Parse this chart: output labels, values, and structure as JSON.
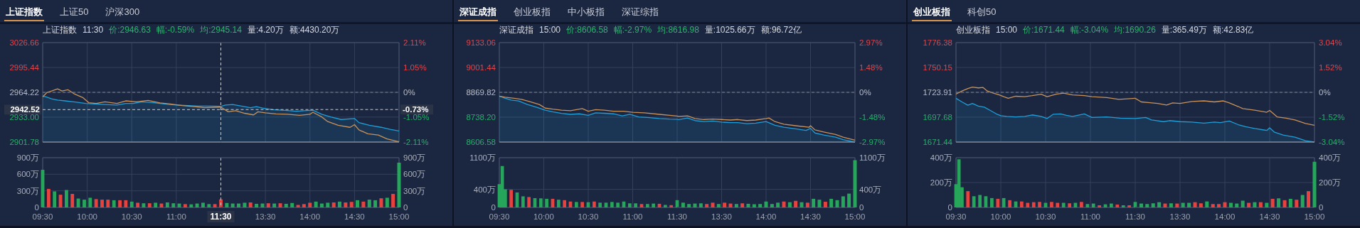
{
  "chart_data": [
    {
      "type": "line",
      "title": "上证指数  11:30  价:2946.63  幅:-0.59%  均:2945.14  量:4.20万  额:4430.20万",
      "annotations": [
        "上证指数",
        "上证50",
        "沪深300"
      ],
      "tick_labels": "y",
      "grid": true,
      "xlim": [
        9.5,
        11.5
      ],
      "xticks": [
        9.5,
        10,
        10.5,
        11,
        11.5
      ],
      "ylim": [
        2901.78,
        3026.66
      ],
      "yticks": [
        2901.78,
        {
          "value": 2933,
          "label": "2933.00"
        },
        2964.22,
        2995.44,
        3026.66
      ],
      "ref_lines": [
        {
          "axis": "y",
          "value": 2964.22,
          "color": "#7d8491",
          "line_style": "dashed"
        },
        {
          "axis": "x",
          "value": 11.5,
          "line_style": "dashed"
        },
        {
          "axis": "y",
          "value": 2942.52,
          "label": "2942.52",
          "line_style": "dashed"
        }
      ],
      "series": [
        {
          "type": "area",
          "color": "#1e9fd8",
          "x": [
            9.5,
            9.533,
            9.6,
            9.667,
            9.75,
            9.85,
            9.983,
            10.083,
            10.2,
            10.333,
            10.433,
            10.517,
            10.617,
            10.75,
            10.867,
            11.0,
            11.133,
            11.25,
            11.383,
            11.5
          ],
          "values": [
            2959.3,
            2958.7,
            2956.1,
            2954.5,
            2953.5,
            2952.2,
            2950.2,
            2949.6,
            2948.9,
            2948.3,
            2950.2,
            2950.2,
            2952.2,
            2951.2,
            2949.6,
            2948.3,
            2947.6,
            2947.0,
            2947.0,
            2946.6
          ]
        },
        {
          "color": "#c8925a",
          "x": [
            9.5,
            9.55,
            9.6,
            9.667,
            9.717,
            9.783,
            9.85,
            9.95,
            10.017,
            10.1,
            10.2,
            10.333,
            10.433,
            10.55,
            10.683,
            10.817,
            10.933,
            11.067,
            11.2,
            11.317,
            11.5
          ],
          "values": [
            2958.7,
            2964.2,
            2965.9,
            2968.5,
            2965.9,
            2967.5,
            2962.6,
            2957.7,
            2951.2,
            2950.2,
            2952.2,
            2950.2,
            2953.5,
            2952.2,
            2954.1,
            2950.9,
            2949.6,
            2947.6,
            2946.3,
            2945.0,
            2945.7
          ]
        }
      ]
    },
    {
      "type": "line",
      "tick_labels": "y",
      "grid": true,
      "xlim": [
        13,
        15
      ],
      "xticks": [
        13.5,
        14,
        14.5,
        15
      ],
      "ylim": [
        2901.78,
        3026.66
      ],
      "y2lim": [
        -2.11,
        2.11
      ],
      "y2ticks": [
        {
          "value": -2.11,
          "label": "-2.11%"
        },
        {
          "value": -1.05,
          "label": "-1.05%"
        },
        {
          "value": 0,
          "label": "0%"
        },
        {
          "value": 1.05,
          "label": "1.05%"
        },
        {
          "value": 2.11,
          "label": "2.11%"
        }
      ],
      "ref_lines": [
        {
          "axis": "y2",
          "value": 0,
          "color": "#7d8491",
          "line_style": "dashed"
        },
        {
          "axis": "y2",
          "value": -0.73,
          "label": "-0.73%",
          "line_style": "dashed"
        }
      ],
      "series": [
        {
          "type": "area",
          "color": "#1e9fd8",
          "x": [
            13.0,
            13.05,
            13.133,
            13.233,
            13.333,
            13.4,
            13.467,
            13.583,
            13.717,
            13.85,
            13.933,
            14.033,
            14.133,
            14.233,
            14.35,
            14.5,
            14.55,
            14.667,
            14.8,
            14.9,
            15.0
          ],
          "values": [
            2946.6,
            2948.3,
            2948.9,
            2947.0,
            2945.0,
            2946.3,
            2944.4,
            2942.4,
            2941.5,
            2940.5,
            2941.1,
            2941.8,
            2936.6,
            2933.3,
            2930.1,
            2931.4,
            2926.2,
            2922.9,
            2920.3,
            2917.7,
            2915.8
          ]
        },
        {
          "color": "#c8925a",
          "x": [
            13.0,
            13.083,
            13.167,
            13.267,
            13.367,
            13.417,
            13.5,
            13.617,
            13.75,
            13.883,
            14.0,
            14.033,
            14.133,
            14.2,
            14.317,
            14.45,
            14.5,
            14.55,
            14.65,
            14.767,
            14.867,
            15.0
          ],
          "values": [
            2945.7,
            2939.8,
            2941.1,
            2937.9,
            2935.9,
            2939.8,
            2938.5,
            2937.2,
            2936.6,
            2935.3,
            2936.6,
            2939.2,
            2933.3,
            2927.5,
            2922.9,
            2920.3,
            2923.6,
            2917.1,
            2912.2,
            2910.6,
            2905.7,
            2902.1
          ]
        }
      ]
    },
    {
      "type": "bar",
      "grid": true,
      "xlim": [
        9.5,
        11.5
      ],
      "xticks": [
        {
          "value": 9.5,
          "label": "09:30"
        },
        {
          "value": 10,
          "label": "10:00"
        },
        {
          "value": 10.5,
          "label": "10:30"
        },
        {
          "value": 11,
          "label": "11:00"
        },
        {
          "value": 11.5,
          "label": null
        }
      ],
      "ylim": [
        0,
        900
      ],
      "yticks": [
        0,
        {
          "value": 300,
          "label": "300万"
        },
        {
          "value": 600,
          "label": "600万"
        },
        {
          "value": 900,
          "label": "900万"
        }
      ],
      "ref_lines": [
        {
          "axis": "x",
          "value": 11.5,
          "label": "11:30",
          "line_style": "dashed"
        }
      ],
      "x": [
        9.5,
        9.567,
        9.633,
        9.7,
        9.767,
        9.833,
        9.9,
        9.967,
        10.033,
        10.1,
        10.167,
        10.233,
        10.3,
        10.367,
        10.433,
        10.5,
        10.567,
        10.633,
        10.7,
        10.767,
        10.833,
        10.9,
        10.967,
        11.033,
        11.1,
        11.167,
        11.233,
        11.3,
        11.367,
        11.433,
        11.5
      ],
      "values": [
        680,
        335,
        290,
        230,
        315,
        245,
        160,
        140,
        175,
        150,
        140,
        140,
        130,
        130,
        130,
        105,
        85,
        75,
        75,
        85,
        70,
        90,
        75,
        70,
        60,
        55,
        70,
        85,
        60,
        60,
        145
      ],
      "colors": [
        "#26a65b",
        "#e8423f",
        "#26a65b",
        "#e8423f",
        "#26a65b",
        "#e8423f",
        "#26a65b",
        "#26a65b",
        "#26a65b",
        "#e8423f",
        "#e8423f",
        "#e8423f",
        "#26a65b",
        "#e8423f",
        "#e8423f",
        "#26a65b",
        "#e8423f",
        "#26a65b",
        "#e8423f",
        "#26a65b",
        "#e8423f",
        "#26a65b",
        "#26a65b",
        "#26a65b",
        "#e8423f",
        "#26a65b",
        "#26a65b",
        "#26a65b",
        "#26a65b",
        "#e8423f",
        "#e8423f"
      ]
    },
    {
      "type": "bar",
      "grid": true,
      "xlim": [
        13,
        15
      ],
      "xticks": [
        {
          "value": 13.5,
          "label": "13:30"
        },
        {
          "value": 14,
          "label": "14:00"
        },
        {
          "value": 14.5,
          "label": "14:30"
        },
        {
          "value": 15,
          "label": "15:00"
        }
      ],
      "ylim": [
        0,
        900
      ],
      "y2lim": [
        0,
        900
      ],
      "y2ticks": [
        {
          "value": 0,
          "label": "0"
        },
        {
          "value": 300,
          "label": "300万"
        },
        {
          "value": 600,
          "label": "600万"
        },
        {
          "value": 900,
          "label": "900万"
        }
      ],
      "x": [
        13.067,
        13.133,
        13.2,
        13.267,
        13.333,
        13.4,
        13.467,
        13.533,
        13.6,
        13.667,
        13.733,
        13.8,
        13.867,
        13.933,
        14.0,
        14.067,
        14.133,
        14.2,
        14.267,
        14.333,
        14.4,
        14.467,
        14.533,
        14.6,
        14.667,
        14.733,
        14.8,
        14.867,
        14.933,
        15.0
      ],
      "values": [
        80,
        70,
        70,
        85,
        90,
        65,
        70,
        75,
        70,
        75,
        65,
        80,
        45,
        60,
        85,
        105,
        70,
        85,
        90,
        105,
        90,
        100,
        130,
        105,
        140,
        130,
        165,
        175,
        245,
        810
      ],
      "colors": [
        "#26a65b",
        "#26a65b",
        "#26a65b",
        "#26a65b",
        "#e8423f",
        "#26a65b",
        "#26a65b",
        "#e8423f",
        "#26a65b",
        "#e8423f",
        "#26a65b",
        "#26a65b",
        "#e8423f",
        "#e8423f",
        "#e8423f",
        "#26a65b",
        "#26a65b",
        "#26a65b",
        "#e8423f",
        "#26a65b",
        "#e8423f",
        "#e8423f",
        "#26a65b",
        "#e8423f",
        "#26a65b",
        "#26a65b",
        "#e8423f",
        "#26a65b",
        "#e8423f",
        "#26a65b"
      ]
    },
    {
      "type": "line",
      "title": "深证成指  15:00  价:8606.58  幅:-2.97%  均:8616.98  量:1025.66万  额:96.72亿",
      "annotations": [
        "深证成指",
        "创业板指",
        "中小板指",
        "深证综指"
      ],
      "tick_labels": "y",
      "grid": true,
      "xlim": [
        9.5,
        11.5
      ],
      "xticks": [
        9.5,
        10,
        10.5,
        11,
        11.5
      ],
      "ylim": [
        8606.58,
        9133.06
      ],
      "yticks": [
        8606.58,
        {
          "value": 8738.2,
          "label": "8738.20"
        },
        8869.82,
        9001.44,
        9133.06
      ],
      "ref_lines": [
        {
          "axis": "y",
          "value": 8869.82,
          "color": "#7d8491",
          "line_style": "dashed"
        }
      ],
      "series": [
        {
          "type": "area",
          "color": "#1e9fd8",
          "x": [
            9.5,
            9.567,
            9.633,
            9.717,
            9.817,
            9.917,
            10.017,
            10.1,
            10.2,
            10.3,
            10.4,
            10.5,
            10.583,
            10.683,
            10.783,
            10.883,
            10.967,
            11.067,
            11.167,
            11.3,
            11.417,
            11.5
          ],
          "values": [
            8849.3,
            8838.3,
            8828.7,
            8824.6,
            8805.4,
            8791.7,
            8775.2,
            8767.0,
            8758.8,
            8753.3,
            8756.1,
            8747.8,
            8761.5,
            8758.8,
            8756.1,
            8745.1,
            8753.3,
            8739.6,
            8736.9,
            8731.4,
            8728.6,
            8727.5
          ]
        },
        {
          "color": "#c8925a",
          "x": [
            9.5,
            9.567,
            9.667,
            9.75,
            9.85,
            9.95,
            10.017,
            10.1,
            10.2,
            10.3,
            10.433,
            10.5,
            10.583,
            10.683,
            10.783,
            10.9,
            11.0,
            11.133,
            11.3,
            11.417,
            11.5
          ],
          "values": [
            8849.3,
            8843.8,
            8838.3,
            8832.8,
            8819.1,
            8805.4,
            8786.2,
            8780.7,
            8775.2,
            8772.5,
            8783.5,
            8769.8,
            8778.0,
            8775.2,
            8769.8,
            8769.8,
            8764.3,
            8761.5,
            8753.3,
            8747.8,
            8744.0
          ]
        }
      ]
    },
    {
      "type": "line",
      "tick_labels": "y",
      "grid": true,
      "xlim": [
        13,
        15
      ],
      "xticks": [
        13.5,
        14,
        14.5,
        15
      ],
      "ylim": [
        8606.58,
        9133.06
      ],
      "y2lim": [
        -2.97,
        2.97
      ],
      "y2ticks": [
        {
          "value": -2.97,
          "label": "-2.97%"
        },
        {
          "value": -1.48,
          "label": "-1.48%"
        },
        {
          "value": 0,
          "label": "0%"
        },
        {
          "value": 1.48,
          "label": "1.48%"
        },
        {
          "value": 2.97,
          "label": "2.97%"
        }
      ],
      "ref_lines": [
        {
          "axis": "y2",
          "value": 0,
          "color": "#7d8491",
          "line_style": "dashed"
        }
      ],
      "series": [
        {
          "type": "area",
          "color": "#1e9fd8",
          "x": [
            13.0,
            13.017,
            13.117,
            13.2,
            13.3,
            13.4,
            13.5,
            13.6,
            13.683,
            13.783,
            13.883,
            14.0,
            14.1,
            14.2,
            14.333,
            14.45,
            14.5,
            14.55,
            14.65,
            14.783,
            14.867,
            15.0
          ],
          "values": [
            8727.5,
            8725.9,
            8734.1,
            8720.4,
            8714.9,
            8717.7,
            8712.2,
            8709.4,
            8709.4,
            8704.0,
            8706.7,
            8714.9,
            8695.7,
            8684.7,
            8676.5,
            8668.3,
            8679.3,
            8654.5,
            8643.6,
            8632.6,
            8618.9,
            8606.6
          ]
        },
        {
          "color": "#c8925a",
          "x": [
            13.0,
            13.017,
            13.117,
            13.2,
            13.3,
            13.4,
            13.5,
            13.6,
            13.683,
            13.783,
            13.883,
            14.0,
            14.033,
            14.1,
            14.2,
            14.333,
            14.483,
            14.5,
            14.55,
            14.65,
            14.783,
            14.867,
            15.0
          ],
          "values": [
            8744.0,
            8742.3,
            8745.1,
            8731.4,
            8725.9,
            8728.6,
            8725.9,
            8723.1,
            8725.9,
            8720.4,
            8723.1,
            8731.4,
            8734.1,
            8714.9,
            8701.2,
            8693.0,
            8684.7,
            8693.0,
            8671.0,
            8660.0,
            8646.3,
            8632.6,
            8616.2
          ]
        }
      ]
    },
    {
      "type": "bar",
      "grid": true,
      "xlim": [
        9.5,
        11.5
      ],
      "xticks": [
        {
          "value": 9.5,
          "label": "09:30"
        },
        {
          "value": 10,
          "label": "10:00"
        },
        {
          "value": 10.5,
          "label": "10:30"
        },
        {
          "value": 11,
          "label": "11:00"
        },
        {
          "value": 11.5,
          "label": "11:30"
        }
      ],
      "ylim": [
        0,
        1100
      ],
      "yticks": [
        0,
        {
          "value": 400,
          "label": "400万"
        },
        {
          "value": 1100,
          "label": "1100万"
        }
      ],
      "x": [
        9.5,
        9.533,
        9.567,
        9.633,
        9.7,
        9.767,
        9.833,
        9.9,
        9.967,
        10.033,
        10.1,
        10.167,
        10.233,
        10.3,
        10.367,
        10.433,
        10.5,
        10.567,
        10.633,
        10.7,
        10.767,
        10.833,
        10.9,
        10.967,
        11.033,
        11.1,
        11.167,
        11.233,
        11.3,
        11.367,
        11.433,
        11.5
      ],
      "values": [
        515,
        915,
        400,
        390,
        330,
        245,
        230,
        205,
        200,
        190,
        190,
        170,
        160,
        130,
        120,
        120,
        115,
        130,
        105,
        105,
        120,
        105,
        130,
        90,
        90,
        75,
        75,
        85,
        80,
        55,
        50,
        160
      ],
      "colors": [
        "#26a65b",
        "#26a65b",
        "#26a65b",
        "#e8423f",
        "#26a65b",
        "#26a65b",
        "#e8423f",
        "#26a65b",
        "#26a65b",
        "#26a65b",
        "#e8423f",
        "#26a65b",
        "#e8423f",
        "#e8423f",
        "#26a65b",
        "#e8423f",
        "#26a65b",
        "#e8423f",
        "#26a65b",
        "#26a65b",
        "#26a65b",
        "#26a65b",
        "#26a65b",
        "#26a65b",
        "#26a65b",
        "#e8423f",
        "#26a65b",
        "#26a65b",
        "#e8423f",
        "#26a65b",
        "#e8423f",
        "#26a65b"
      ]
    },
    {
      "type": "bar",
      "grid": true,
      "xlim": [
        13,
        15
      ],
      "xticks": [
        {
          "value": 13.5,
          "label": "13:30"
        },
        {
          "value": 14,
          "label": "14:00"
        },
        {
          "value": 14.5,
          "label": "14:30"
        },
        {
          "value": 15,
          "label": "15:00"
        }
      ],
      "ylim": [
        0,
        1100
      ],
      "y2lim": [
        0,
        1100
      ],
      "y2ticks": [
        0,
        {
          "value": 400,
          "label": "400万"
        },
        {
          "value": 1100,
          "label": "1100万"
        }
      ],
      "x": [
        13.067,
        13.133,
        13.2,
        13.267,
        13.333,
        13.4,
        13.467,
        13.533,
        13.6,
        13.667,
        13.733,
        13.8,
        13.867,
        13.933,
        14.0,
        14.067,
        14.133,
        14.2,
        14.267,
        14.333,
        14.4,
        14.467,
        14.533,
        14.6,
        14.667,
        14.733,
        14.8,
        14.867,
        14.933,
        15.0
      ],
      "values": [
        105,
        75,
        85,
        90,
        75,
        105,
        75,
        105,
        85,
        75,
        90,
        80,
        70,
        75,
        130,
        75,
        105,
        130,
        115,
        145,
        115,
        105,
        190,
        170,
        125,
        190,
        160,
        245,
        305,
        1045
      ],
      "colors": [
        "#26a65b",
        "#26a65b",
        "#26a65b",
        "#26a65b",
        "#e8423f",
        "#e8423f",
        "#26a65b",
        "#e8423f",
        "#e8423f",
        "#26a65b",
        "#e8423f",
        "#26a65b",
        "#26a65b",
        "#26a65b",
        "#26a65b",
        "#26a65b",
        "#26a65b",
        "#e8423f",
        "#26a65b",
        "#e8423f",
        "#26a65b",
        "#e8423f",
        "#26a65b",
        "#26a65b",
        "#e8423f",
        "#26a65b",
        "#26a65b",
        "#26a65b",
        "#26a65b",
        "#26a65b"
      ]
    },
    {
      "type": "line",
      "title": "创业板指  15:00  价:1671.44  幅:-3.04%  均:1690.26  量:365.49万  额:42.83亿",
      "annotations": [
        "创业板指",
        "科创50"
      ],
      "tick_labels": "y",
      "grid": true,
      "xlim": [
        9.5,
        11.5
      ],
      "xticks": [
        9.5,
        10,
        10.5,
        11,
        11.5
      ],
      "ylim": [
        1671.44,
        1776.38
      ],
      "yticks": [
        1671.44,
        1697.68,
        1723.91,
        1750.15,
        1776.38
      ],
      "ref_lines": [
        {
          "axis": "y",
          "value": 1723.91,
          "color": "#7d8491",
          "line_style": "dashed"
        }
      ],
      "series": [
        {
          "type": "area",
          "color": "#1e9fd8",
          "x": [
            9.5,
            9.567,
            9.633,
            9.683,
            9.75,
            9.817,
            9.883,
            9.95,
            10.0,
            10.067,
            10.167,
            10.267,
            10.35,
            10.45,
            10.517,
            10.583,
            10.667,
            10.733,
            10.8,
            10.933,
            11.017,
            11.183,
            11.333,
            11.5
          ],
          "values": [
            1717.6,
            1713.8,
            1710.3,
            1712.2,
            1709.4,
            1708.3,
            1704.8,
            1701.2,
            1699.3,
            1698.5,
            1698.0,
            1698.5,
            1700.1,
            1698.5,
            1696.3,
            1700.7,
            1701.2,
            1699.6,
            1698.5,
            1701.2,
            1697.4,
            1698.0,
            1696.6,
            1696.3
          ]
        },
        {
          "color": "#c8925a",
          "x": [
            9.5,
            9.567,
            9.633,
            9.683,
            9.75,
            9.8,
            9.85,
            9.917,
            9.983,
            10.033,
            10.083,
            10.167,
            10.267,
            10.35,
            10.45,
            10.517,
            10.617,
            10.7,
            10.8,
            10.933,
            11.017,
            11.183,
            11.317,
            11.5
          ],
          "values": [
            1722.0,
            1725.3,
            1728.0,
            1729.4,
            1728.6,
            1729.1,
            1725.3,
            1723.1,
            1721.2,
            1719.3,
            1717.6,
            1719.8,
            1719.3,
            1720.4,
            1722.0,
            1719.3,
            1722.0,
            1723.1,
            1721.2,
            1720.4,
            1719.3,
            1718.4,
            1716.5,
            1717.6
          ]
        }
      ]
    },
    {
      "type": "line",
      "tick_labels": "y",
      "grid": true,
      "xlim": [
        13,
        15
      ],
      "xticks": [
        13.5,
        14,
        14.5,
        15
      ],
      "ylim": [
        1671.44,
        1776.38
      ],
      "y2lim": [
        -3.04,
        3.04
      ],
      "y2ticks": [
        {
          "value": -3.04,
          "label": "-3.04%"
        },
        {
          "value": -1.52,
          "label": "-1.52%"
        },
        {
          "value": 0,
          "label": "0%"
        },
        {
          "value": 1.52,
          "label": "1.52%"
        },
        {
          "value": 3.04,
          "label": "3.04%"
        }
      ],
      "ref_lines": [
        {
          "axis": "y2",
          "value": 0,
          "color": "#7d8491",
          "line_style": "dashed"
        }
      ],
      "series": [
        {
          "type": "area",
          "color": "#1e9fd8",
          "x": [
            13.0,
            13.117,
            13.183,
            13.317,
            13.383,
            13.5,
            13.633,
            13.767,
            13.883,
            13.95,
            14.05,
            14.15,
            14.233,
            14.333,
            14.467,
            14.5,
            14.55,
            14.65,
            14.783,
            14.9,
            15.0
          ],
          "values": [
            1696.3,
            1697.4,
            1694.7,
            1693.0,
            1694.1,
            1693.0,
            1692.5,
            1691.4,
            1692.5,
            1691.9,
            1693.6,
            1689.8,
            1687.6,
            1685.7,
            1683.7,
            1686.5,
            1682.1,
            1678.8,
            1676.6,
            1672.8,
            1671.5
          ]
        },
        {
          "color": "#c8925a",
          "x": [
            13.0,
            13.067,
            13.167,
            13.25,
            13.35,
            13.417,
            13.5,
            13.633,
            13.767,
            13.883,
            13.983,
            14.05,
            14.15,
            14.2,
            14.333,
            14.467,
            14.5,
            14.583,
            14.683,
            14.783,
            14.9,
            15.0
          ],
          "values": [
            1717.6,
            1713.8,
            1713.0,
            1712.2,
            1710.5,
            1712.7,
            1712.2,
            1714.3,
            1714.9,
            1713.8,
            1714.9,
            1712.7,
            1708.9,
            1706.7,
            1705.1,
            1702.9,
            1704.8,
            1698.0,
            1696.6,
            1694.7,
            1691.1,
            1689.2
          ]
        }
      ]
    },
    {
      "type": "bar",
      "grid": true,
      "xlim": [
        9.5,
        11.5
      ],
      "xticks": [
        {
          "value": 9.5,
          "label": "09:30"
        },
        {
          "value": 10,
          "label": "10:00"
        },
        {
          "value": 10.5,
          "label": "10:30"
        },
        {
          "value": 11,
          "label": "11:00"
        },
        {
          "value": 11.5,
          "label": "11:30"
        }
      ],
      "ylim": [
        0,
        400
      ],
      "yticks": [
        0,
        {
          "value": 200,
          "label": "200万"
        },
        {
          "value": 400,
          "label": "400万"
        }
      ],
      "x": [
        9.5,
        9.533,
        9.567,
        9.633,
        9.7,
        9.767,
        9.833,
        9.9,
        9.967,
        10.033,
        10.1,
        10.167,
        10.233,
        10.3,
        10.367,
        10.433,
        10.5,
        10.567,
        10.633,
        10.7,
        10.767,
        10.833,
        10.9,
        10.967,
        11.033,
        11.1,
        11.167,
        11.233,
        11.3,
        11.367,
        11.433,
        11.5
      ],
      "values": [
        187,
        387,
        162,
        131,
        90,
        100,
        90,
        75,
        69,
        75,
        58,
        48,
        48,
        37,
        42,
        44,
        37,
        44,
        37,
        37,
        33,
        37,
        44,
        27,
        31,
        17,
        25,
        31,
        23,
        17,
        17,
        44
      ],
      "colors": [
        "#26a65b",
        "#26a65b",
        "#26a65b",
        "#e8423f",
        "#26a65b",
        "#26a65b",
        "#26a65b",
        "#26a65b",
        "#e8423f",
        "#26a65b",
        "#e8423f",
        "#26a65b",
        "#e8423f",
        "#e8423f",
        "#e8423f",
        "#e8423f",
        "#26a65b",
        "#e8423f",
        "#e8423f",
        "#26a65b",
        "#e8423f",
        "#26a65b",
        "#e8423f",
        "#26a65b",
        "#26a65b",
        "#e8423f",
        "#26a65b",
        "#26a65b",
        "#e8423f",
        "#26a65b",
        "#e8423f",
        "#26a65b"
      ]
    },
    {
      "type": "bar",
      "grid": true,
      "xlim": [
        13,
        15
      ],
      "xticks": [
        {
          "value": 13.5,
          "label": "13:30"
        },
        {
          "value": 14,
          "label": "14:00"
        },
        {
          "value": 14.5,
          "label": "14:30"
        },
        {
          "value": 15,
          "label": "15:00"
        }
      ],
      "ylim": [
        0,
        400
      ],
      "y2lim": [
        0,
        400
      ],
      "y2ticks": [
        0,
        {
          "value": 200,
          "label": "200万"
        },
        {
          "value": 400,
          "label": "400万"
        }
      ],
      "x": [
        13.067,
        13.133,
        13.2,
        13.267,
        13.333,
        13.4,
        13.467,
        13.533,
        13.6,
        13.667,
        13.733,
        13.8,
        13.867,
        13.933,
        14.0,
        14.067,
        14.133,
        14.2,
        14.267,
        14.333,
        14.4,
        14.467,
        14.533,
        14.6,
        14.667,
        14.733,
        14.8,
        14.867,
        14.933,
        15.0
      ],
      "values": [
        31,
        27,
        33,
        42,
        31,
        33,
        31,
        37,
        37,
        42,
        33,
        48,
        27,
        27,
        42,
        37,
        31,
        54,
        37,
        42,
        42,
        37,
        69,
        73,
        58,
        69,
        62,
        100,
        131,
        367
      ],
      "colors": [
        "#26a65b",
        "#26a65b",
        "#26a65b",
        "#26a65b",
        "#e8423f",
        "#26a65b",
        "#e8423f",
        "#26a65b",
        "#26a65b",
        "#e8423f",
        "#e8423f",
        "#26a65b",
        "#e8423f",
        "#e8423f",
        "#e8423f",
        "#26a65b",
        "#26a65b",
        "#26a65b",
        "#e8423f",
        "#26a65b",
        "#e8423f",
        "#26a65b",
        "#e8423f",
        "#26a65b",
        "#e8423f",
        "#26a65b",
        "#e8423f",
        "#26a65b",
        "#e8423f",
        "#26a65b"
      ]
    }
  ]
}
